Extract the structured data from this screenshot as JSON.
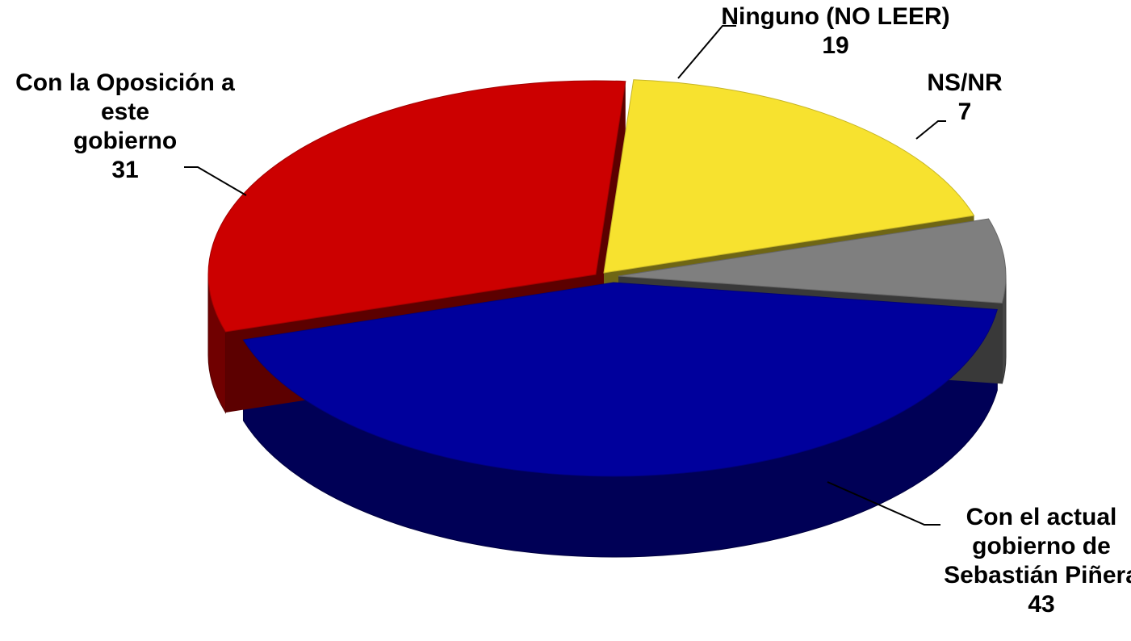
{
  "chart_data": {
    "type": "pie",
    "title": "",
    "unit": "%",
    "slices": [
      {
        "label": "Con el actual gobierno de Sebastián Piñera",
        "label_lines": [
          "Con el actual",
          "gobierno de",
          "Sebastián Piñera"
        ],
        "value": 43,
        "value_label": "43",
        "color": "#00009c"
      },
      {
        "label": "Con la Oposición a este gobierno",
        "label_lines": [
          "Con la Oposición a",
          "este",
          "gobierno"
        ],
        "value": 31,
        "value_label": "31",
        "color": "#cc0000"
      },
      {
        "label": "Ninguno (NO LEER)",
        "label_lines": [
          "Ninguno (NO LEER)"
        ],
        "value": 19,
        "value_label": "19",
        "color": "#f7e22f"
      },
      {
        "label": "NS/NR",
        "label_lines": [
          "NS/NR"
        ],
        "value": 7,
        "value_label": "7",
        "color": "#7f7f7f"
      }
    ]
  }
}
